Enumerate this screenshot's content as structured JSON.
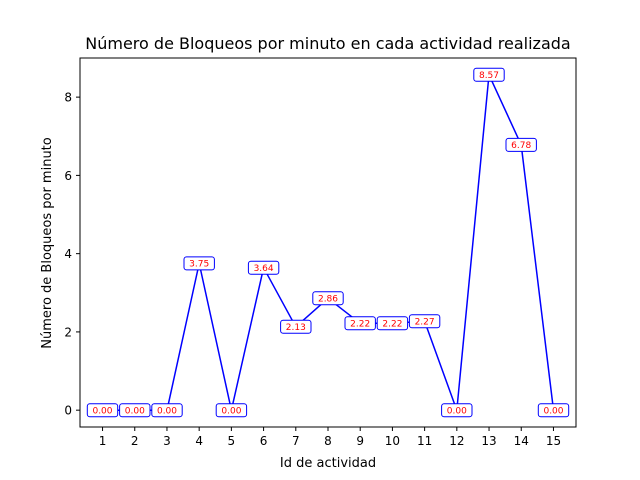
{
  "chart_data": {
    "type": "line",
    "title": "Número de Bloqueos por minuto en cada actividad realizada",
    "xlabel": "Id de actividad",
    "ylabel": "Número de Bloqueos por minuto",
    "x": [
      1,
      2,
      3,
      4,
      5,
      6,
      7,
      8,
      9,
      10,
      11,
      12,
      13,
      14,
      15
    ],
    "y": [
      0.0,
      0.0,
      0.0,
      3.75,
      0.0,
      3.64,
      2.13,
      2.86,
      2.22,
      2.22,
      2.27,
      0.0,
      8.57,
      6.78,
      0.0
    ],
    "data_labels": [
      "0.00",
      "0.00",
      "0.00",
      "3.75",
      "0.00",
      "3.64",
      "2.13",
      "2.86",
      "2.22",
      "2.22",
      "2.27",
      "0.00",
      "8.57",
      "6.78",
      "0.00"
    ],
    "x_ticks": [
      "1",
      "2",
      "3",
      "4",
      "5",
      "6",
      "7",
      "8",
      "9",
      "10",
      "11",
      "12",
      "13",
      "14",
      "15"
    ],
    "y_ticks": [
      {
        "value": 0,
        "label": "0"
      },
      {
        "value": 2,
        "label": "2"
      },
      {
        "value": 4,
        "label": "4"
      },
      {
        "value": 6,
        "label": "6"
      },
      {
        "value": 8,
        "label": "8"
      }
    ],
    "xlim": [
      0.3,
      15.7
    ],
    "ylim": [
      -0.43,
      9.0
    ],
    "grid": false,
    "line_color": "#0000ff",
    "label_text_color": "#ff0000",
    "label_box_border_color": "#0000ff"
  }
}
